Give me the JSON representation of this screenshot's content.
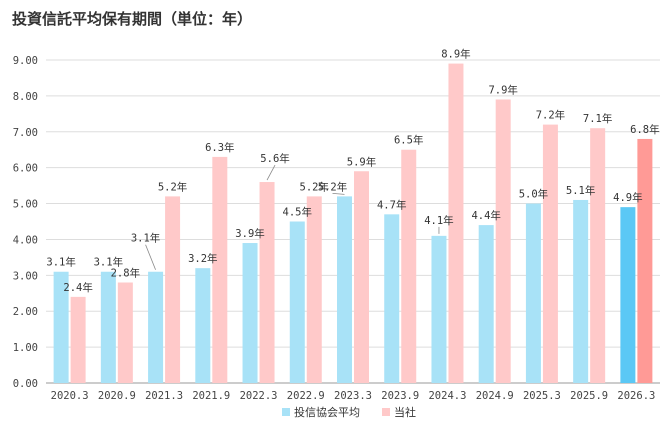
{
  "title": "投資信託平均保有期間（単位：年）",
  "colors": {
    "series_a": "#a8e2f7",
    "series_a_highlight": "#5bc8f5",
    "series_b": "#ffc9c9",
    "series_b_highlight": "#ff9a96",
    "grid": "#dddddd",
    "axis": "#999999"
  },
  "chart_data": {
    "type": "bar",
    "categories": [
      "2020.3",
      "2020.9",
      "2021.3",
      "2021.9",
      "2022.3",
      "2022.9",
      "2023.3",
      "2023.9",
      "2024.3",
      "2024.9",
      "2025.3",
      "2025.9",
      "2026.3"
    ],
    "series": [
      {
        "name": "投信協会平均",
        "values": [
          3.1,
          3.1,
          3.1,
          3.2,
          3.9,
          4.5,
          5.2,
          4.7,
          4.1,
          4.4,
          5.0,
          5.1,
          4.9
        ]
      },
      {
        "name": "当社",
        "values": [
          2.4,
          2.8,
          5.2,
          6.3,
          5.6,
          5.2,
          5.9,
          6.5,
          8.9,
          7.9,
          7.2,
          7.1,
          6.8
        ]
      }
    ],
    "data_label_suffix": "年",
    "ylim": [
      0,
      9
    ],
    "yticks": [
      "0.00",
      "1.00",
      "2.00",
      "3.00",
      "4.00",
      "5.00",
      "6.00",
      "7.00",
      "8.00",
      "9.00"
    ],
    "grid": true,
    "legend": "bottom-center",
    "highlight_last": true
  }
}
